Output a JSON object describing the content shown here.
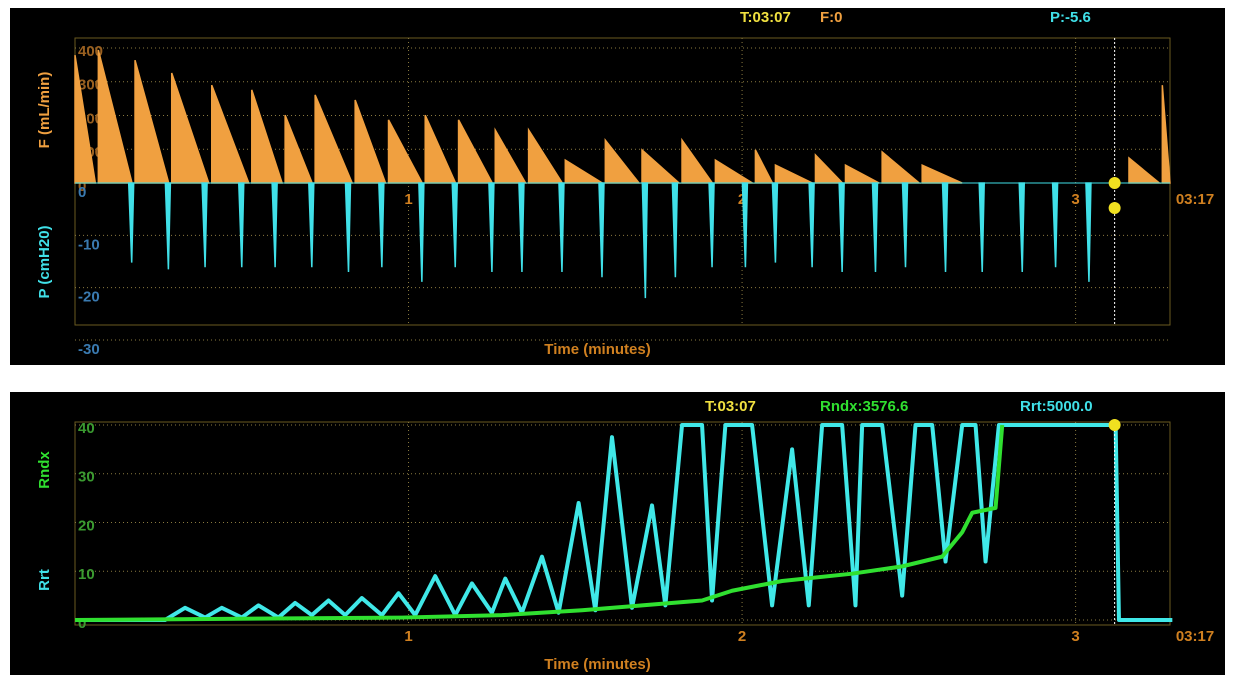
{
  "chart_data": [
    {
      "type": "waveform",
      "readouts": [
        {
          "text": "T:03:07",
          "color": "#f0e040"
        },
        {
          "text": "F:0",
          "color": "#f0a040"
        },
        {
          "text": "P:-5.6",
          "color": "#40e0e8"
        }
      ],
      "xlabel": "Time (minutes)",
      "ylabel": "F (mL/min)",
      "y2label": "P (cmH20)",
      "xlim": [
        0,
        3.283
      ],
      "xticks": [
        1,
        2,
        3,
        {
          "value": 3.283,
          "label": "03:17"
        }
      ],
      "ylim": [
        0,
        400
      ],
      "yticks": [
        0,
        100,
        200,
        300,
        400
      ],
      "y2lim": [
        -30,
        0
      ],
      "y2ticks": [
        0,
        -10,
        -20,
        -30
      ],
      "grid": true,
      "cursor_x": 3.117,
      "series": [
        {
          "color": "#f0a040",
          "x": [
            0,
            0.07,
            0.18,
            0.29,
            0.41,
            0.53,
            0.63,
            0.72,
            0.84,
            0.94,
            1.05,
            1.15,
            1.26,
            1.36,
            1.47,
            1.59,
            1.7,
            1.82,
            1.92,
            2.04,
            2.1,
            2.22,
            2.31,
            2.42,
            2.54,
            3.16,
            3.26
          ],
          "values": [
            379,
            394,
            364,
            326,
            290,
            276,
            201,
            261,
            246,
            187,
            201,
            187,
            157,
            157,
            68,
            127,
            98,
            127,
            68,
            98,
            53,
            83,
            53,
            92,
            53,
            74,
            290
          ]
        },
        {
          "color": "#40e0e8",
          "axis": "y2",
          "x": [
            0.17,
            0.28,
            0.39,
            0.5,
            0.6,
            0.71,
            0.82,
            0.92,
            1.04,
            1.14,
            1.25,
            1.34,
            1.46,
            1.58,
            1.71,
            1.8,
            1.91,
            2.01,
            2.1,
            2.21,
            2.3,
            2.4,
            2.49,
            2.61,
            2.72,
            2.84,
            2.94,
            3.04
          ],
          "values": [
            -15.2,
            -16.5,
            -16.1,
            -16.1,
            -16.1,
            -16.1,
            -17,
            -16.1,
            -18.9,
            -16.1,
            -17,
            -17,
            -17,
            -18,
            -22,
            -18,
            -16.1,
            -16.1,
            -15.2,
            -16.1,
            -17,
            -17,
            -16.1,
            -17,
            -17,
            -17,
            -16.1,
            -18.9
          ]
        }
      ]
    },
    {
      "type": "line",
      "readouts": [
        {
          "text": "T:03:07",
          "color": "#f0e040"
        },
        {
          "text": "Rndx:3576.6",
          "color": "#30e030"
        },
        {
          "text": "Rrt:5000.0",
          "color": "#40e0e8"
        }
      ],
      "xlabel": "Time (minutes)",
      "ylabels": [
        {
          "text": "Rndx",
          "color": "#30e030"
        },
        {
          "text": "Rrt",
          "color": "#40e0e8"
        }
      ],
      "xlim": [
        0,
        3.283
      ],
      "xticks": [
        1,
        2,
        3,
        {
          "value": 3.283,
          "label": "03:17"
        }
      ],
      "ylim": [
        0,
        40
      ],
      "yticks": [
        0,
        10,
        20,
        30,
        40
      ],
      "grid": true,
      "cursor_x": 3.117,
      "series": [
        {
          "color": "#40e8e8",
          "x": [
            0,
            0.27,
            0.33,
            0.39,
            0.44,
            0.5,
            0.55,
            0.61,
            0.66,
            0.71,
            0.76,
            0.81,
            0.86,
            0.92,
            0.97,
            1.02,
            1.08,
            1.14,
            1.19,
            1.25,
            1.29,
            1.34,
            1.4,
            1.45,
            1.51,
            1.56,
            1.61,
            1.67,
            1.73,
            1.77,
            1.82,
            1.88,
            1.91,
            1.95,
            2.03,
            2.09,
            2.15,
            2.2,
            2.24,
            2.3,
            2.34,
            2.36,
            2.42,
            2.48,
            2.52,
            2.57,
            2.61,
            2.66,
            2.7,
            2.73,
            2.77,
            3.12,
            3.13,
            3.29
          ],
          "values": [
            0,
            0,
            2.5,
            0.5,
            2.5,
            0.5,
            3,
            0.5,
            3.5,
            1,
            4,
            1,
            4.5,
            1,
            5.5,
            1,
            9,
            1,
            7.5,
            1.5,
            8.5,
            1.5,
            13,
            1.5,
            24,
            2,
            37.5,
            2.5,
            23.5,
            3,
            40,
            40,
            4,
            40,
            40,
            3,
            35,
            3,
            40,
            40,
            3,
            40,
            40,
            5,
            40,
            40,
            12,
            40,
            40,
            12,
            40,
            40,
            0,
            0
          ]
        },
        {
          "color": "#30e030",
          "x": [
            0,
            0.98,
            1.28,
            1.52,
            1.7,
            1.88,
            1.97,
            2.12,
            2.33,
            2.48,
            2.6,
            2.66,
            2.69,
            2.76,
            2.78
          ],
          "values": [
            0,
            0.5,
            1,
            2,
            3,
            4,
            6,
            8,
            9.5,
            11,
            13,
            18,
            22,
            23,
            40
          ]
        }
      ]
    }
  ]
}
